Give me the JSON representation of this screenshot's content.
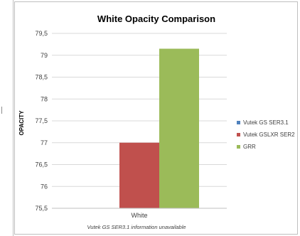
{
  "chart_data": {
    "type": "bar",
    "title": "White Opacity Comparison",
    "xlabel": "",
    "ylabel": "OPACITY",
    "categories": [
      "White"
    ],
    "ylim": [
      75.5,
      79.5
    ],
    "yticks": [
      "75,5",
      "76",
      "76,5",
      "77",
      "77,5",
      "78",
      "78,5",
      "79",
      "79,5"
    ],
    "grid": true,
    "legend_position": "right",
    "series": [
      {
        "name": "Vutek GS SER3.1",
        "values": [
          null
        ],
        "color": "#4f81bd"
      },
      {
        "name": "Vutek GSLXR SER2",
        "values": [
          77
        ],
        "color": "#c0504d"
      },
      {
        "name": "GRR",
        "values": [
          79.15
        ],
        "color": "#9bbb59"
      }
    ],
    "note": "Vutek GS SER3.1 information unavailable"
  }
}
